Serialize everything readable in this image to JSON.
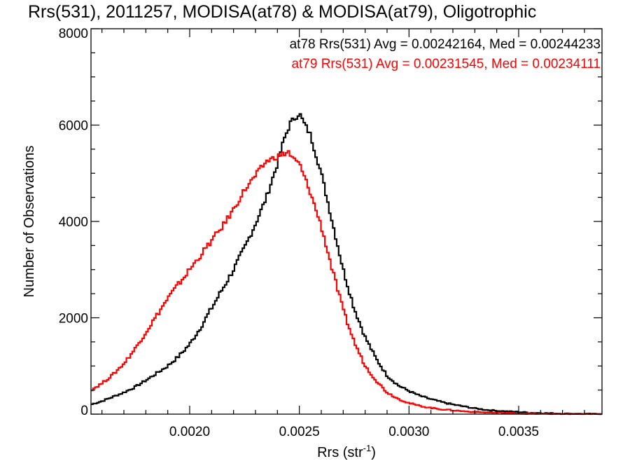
{
  "chart_data": {
    "type": "line",
    "title": "Rrs(531), 2011257, MODISA(at78) & MODISA(at79), Oligotrophic",
    "xlabel": "Rrs (str",
    "xlabel_sup": "-1",
    "xlabel_close": ")",
    "ylabel": "Number of Observations",
    "xlim": [
      0.00155,
      0.00388
    ],
    "ylim": [
      0,
      8000
    ],
    "xticks": [
      {
        "value": 0.002,
        "label": "0.0020"
      },
      {
        "value": 0.0025,
        "label": "0.0025"
      },
      {
        "value": 0.003,
        "label": "0.0030"
      },
      {
        "value": 0.0035,
        "label": "0.0035"
      }
    ],
    "yticks": [
      {
        "value": 0,
        "label": "0"
      },
      {
        "value": 2000,
        "label": "2000"
      },
      {
        "value": 4000,
        "label": "4000"
      },
      {
        "value": 6000,
        "label": "6000"
      },
      {
        "value": 8000,
        "label": "8000"
      }
    ],
    "x_minor_step": 0.0001,
    "y_minor_step": 500,
    "grid": false,
    "legend_position": "top-right",
    "series": [
      {
        "name": "at78 Rrs(531) Avg = 0.00242164, Med = 0.00244233",
        "color": "#000000",
        "x": [
          0.00155,
          0.0016,
          0.00165,
          0.0017,
          0.00175,
          0.0018,
          0.00185,
          0.0019,
          0.00195,
          0.002,
          0.00205,
          0.0021,
          0.00215,
          0.0022,
          0.00225,
          0.0023,
          0.00235,
          0.0024,
          0.00243,
          0.00246,
          0.00248,
          0.0025,
          0.00252,
          0.00255,
          0.0026,
          0.00265,
          0.0027,
          0.00275,
          0.0028,
          0.00285,
          0.0029,
          0.00295,
          0.003,
          0.00305,
          0.0031,
          0.00315,
          0.0032,
          0.00325,
          0.0033,
          0.00335,
          0.0034,
          0.00345,
          0.0035,
          0.00355,
          0.0036,
          0.00365,
          0.0037,
          0.00375,
          0.0038,
          0.00385,
          0.00388
        ],
        "y": [
          200,
          270,
          360,
          450,
          560,
          700,
          850,
          1000,
          1200,
          1450,
          1800,
          2200,
          2600,
          3000,
          3450,
          3950,
          4500,
          5200,
          5700,
          6050,
          6150,
          6250,
          6050,
          5800,
          5000,
          4000,
          3000,
          2200,
          1600,
          1150,
          800,
          600,
          480,
          380,
          310,
          250,
          200,
          160,
          120,
          90,
          70,
          55,
          45,
          30,
          25,
          18,
          12,
          8,
          6,
          4,
          3
        ]
      },
      {
        "name": "at79 Rrs(531) Avg = 0.00231545, Med = 0.00234111",
        "color": "#ff0000",
        "x": [
          0.00155,
          0.0016,
          0.00165,
          0.0017,
          0.00175,
          0.0018,
          0.00185,
          0.0019,
          0.00195,
          0.002,
          0.00205,
          0.0021,
          0.00215,
          0.0022,
          0.00225,
          0.0023,
          0.00235,
          0.0024,
          0.00243,
          0.00245,
          0.00247,
          0.0025,
          0.00255,
          0.0026,
          0.00265,
          0.0027,
          0.00275,
          0.0028,
          0.00285,
          0.0029,
          0.00295,
          0.003,
          0.00305,
          0.0031,
          0.00315,
          0.0032,
          0.00325,
          0.0033,
          0.00335,
          0.0034,
          0.00345,
          0.0035,
          0.00355,
          0.0036,
          0.00365,
          0.0037,
          0.00375,
          0.0038,
          0.00385,
          0.00388
        ],
        "y": [
          500,
          640,
          820,
          1050,
          1350,
          1700,
          2050,
          2400,
          2700,
          3000,
          3300,
          3600,
          3900,
          4250,
          4650,
          4950,
          5250,
          5350,
          5400,
          5450,
          5300,
          5200,
          4600,
          3900,
          3000,
          2150,
          1500,
          1000,
          700,
          450,
          320,
          230,
          170,
          130,
          100,
          80,
          60,
          45,
          35,
          28,
          22,
          16,
          12,
          9,
          7,
          5,
          4,
          3,
          2,
          1
        ]
      }
    ]
  }
}
